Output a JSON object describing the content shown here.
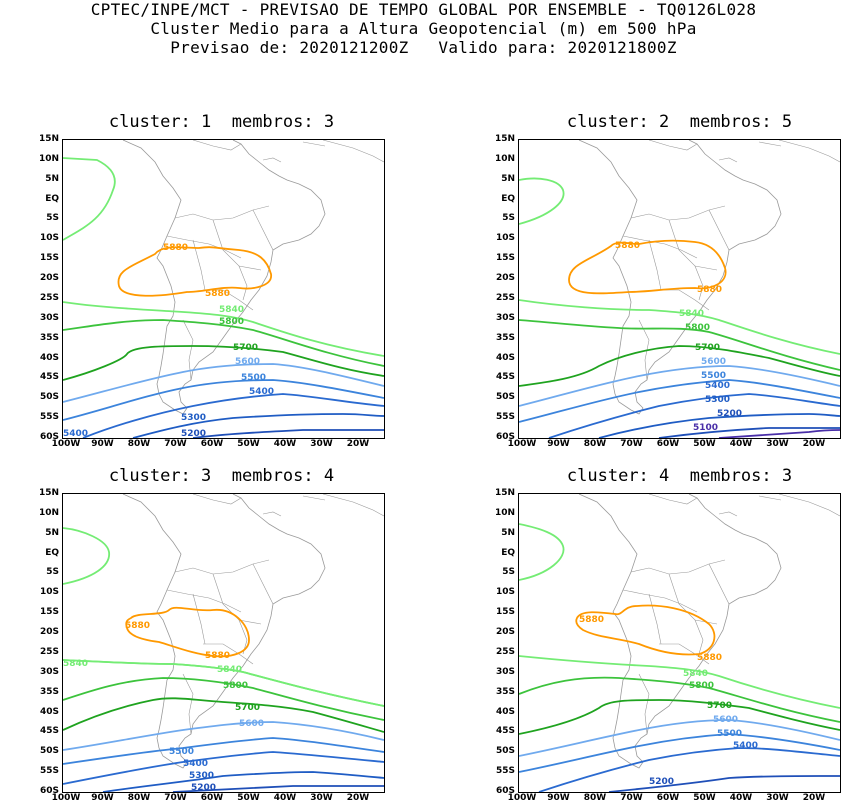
{
  "header": {
    "line1": "CPTEC/INPE/MCT - PREVISAO DE TEMPO GLOBAL POR ENSEMBLE - TQ0126L028",
    "line2": "Cluster Medio para a Altura Geopotencial (m) em 500 hPa",
    "line3": "Previsao de: 2020121200Z   Valido para: 2020121800Z"
  },
  "axes": {
    "lat_labels": [
      "15N",
      "10N",
      "5N",
      "EQ",
      "5S",
      "10S",
      "15S",
      "20S",
      "25S",
      "30S",
      "35S",
      "40S",
      "45S",
      "50S",
      "55S",
      "60S"
    ],
    "lon_labels": [
      "100W",
      "90W",
      "80W",
      "70W",
      "60W",
      "50W",
      "40W",
      "30W",
      "20W"
    ]
  },
  "colors": {
    "c5100": "#4a2fa8",
    "c5200": "#1f4fb8",
    "c5300": "#1f5cc4",
    "c5400": "#2a6ad0",
    "c5500": "#3c84dc",
    "c5600": "#70aaee",
    "c5700": "#1fa31f",
    "c5800": "#3cc33c",
    "c5840": "#74ec74",
    "c5880": "#ff9900",
    "coast": "#9a9a9a"
  },
  "chart_data": [
    {
      "type": "contour-map",
      "title": "cluster: 1  membros: 3",
      "cluster": "1",
      "membros": "3",
      "labels": [
        "5880",
        "5880",
        "5840",
        "5800",
        "5700",
        "5600",
        "5500",
        "5400",
        "5300",
        "5200",
        "5400"
      ]
    },
    {
      "type": "contour-map",
      "title": "cluster: 2  membros: 5",
      "cluster": "2",
      "membros": "5",
      "labels": [
        "5880",
        "5880",
        "5840",
        "5800",
        "5700",
        "5600",
        "5500",
        "5400",
        "5300",
        "5200",
        "5100"
      ]
    },
    {
      "type": "contour-map",
      "title": "cluster: 3  membros: 4",
      "cluster": "3",
      "membros": "4",
      "labels": [
        "5880",
        "5880",
        "5840",
        "5840",
        "5800",
        "5700",
        "5600",
        "5500",
        "5400",
        "5300",
        "5200"
      ]
    },
    {
      "type": "contour-map",
      "title": "cluster: 4  membros: 3",
      "cluster": "4",
      "membros": "3",
      "labels": [
        "5880",
        "5880",
        "5840",
        "5800",
        "5700",
        "5600",
        "5500",
        "5400",
        "5200"
      ]
    }
  ]
}
